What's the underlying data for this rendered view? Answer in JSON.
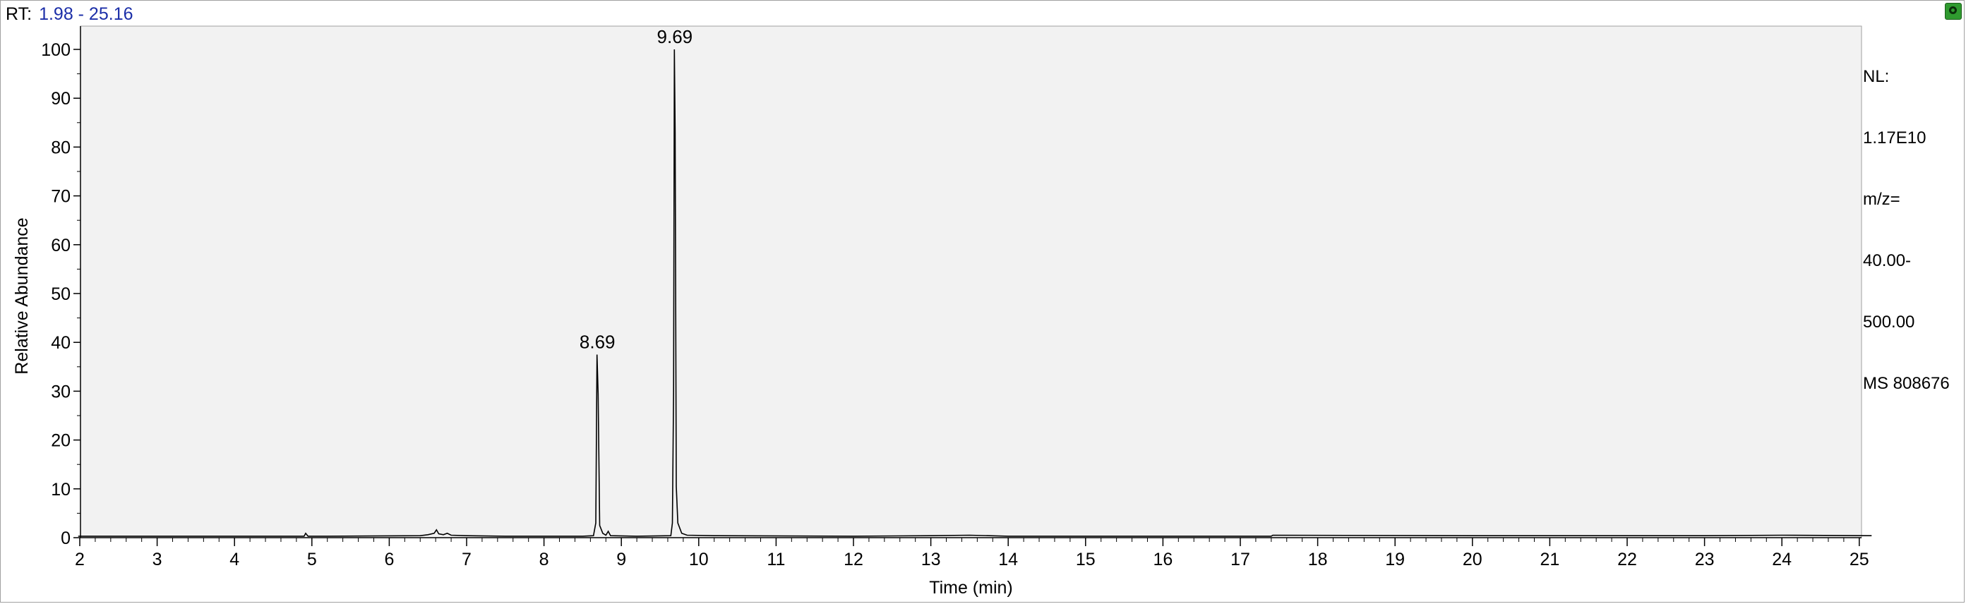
{
  "header": {
    "rt_label": "RT:",
    "rt_range": "1.98 - 25.16"
  },
  "info_panel": {
    "lines": [
      "NL:",
      "1.17E10",
      "m/z=",
      "40.00-",
      "500.00",
      "MS 808676"
    ]
  },
  "colors": {
    "plot_background": "#f2f2f2",
    "trace": "#000000",
    "rt_value": "#1c2fa8",
    "corner_button": "#2f9a2f"
  },
  "icons": {
    "corner_button": "refresh-icon"
  },
  "chart_data": {
    "type": "line",
    "xlabel": "Time (min)",
    "ylabel": "Relative Abundance",
    "xlim": [
      1.98,
      25.16
    ],
    "ylim": [
      0,
      100
    ],
    "x_ticks": [
      2,
      3,
      4,
      5,
      6,
      7,
      8,
      9,
      10,
      11,
      12,
      13,
      14,
      15,
      16,
      17,
      18,
      19,
      20,
      21,
      22,
      23,
      24,
      25
    ],
    "y_ticks": [
      0,
      10,
      20,
      30,
      40,
      50,
      60,
      70,
      80,
      90,
      100
    ],
    "grid": false,
    "peak_labels": [
      {
        "text": "8.69",
        "x": 8.69,
        "y": 37.5
      },
      {
        "text": "9.69",
        "x": 9.69,
        "y": 100
      }
    ],
    "series": [
      {
        "points": [
          [
            1.98,
            0.3
          ],
          [
            4.9,
            0.3
          ],
          [
            4.92,
            0.9
          ],
          [
            4.95,
            0.3
          ],
          [
            5.2,
            0.3
          ],
          [
            6.4,
            0.4
          ],
          [
            6.5,
            0.6
          ],
          [
            6.58,
            0.9
          ],
          [
            6.61,
            1.6
          ],
          [
            6.64,
            0.8
          ],
          [
            6.7,
            0.6
          ],
          [
            6.75,
            0.9
          ],
          [
            6.8,
            0.5
          ],
          [
            7.0,
            0.4
          ],
          [
            7.5,
            0.3
          ],
          [
            8.5,
            0.3
          ],
          [
            8.64,
            0.4
          ],
          [
            8.67,
            3.0
          ],
          [
            8.685,
            37.5
          ],
          [
            8.7,
            29.5
          ],
          [
            8.72,
            2.5
          ],
          [
            8.76,
            0.9
          ],
          [
            8.8,
            0.5
          ],
          [
            8.83,
            1.3
          ],
          [
            8.86,
            0.4
          ],
          [
            9.2,
            0.3
          ],
          [
            9.64,
            0.4
          ],
          [
            9.66,
            3.0
          ],
          [
            9.675,
            30.0
          ],
          [
            9.685,
            100
          ],
          [
            9.695,
            83.0
          ],
          [
            9.71,
            10.5
          ],
          [
            9.73,
            3.0
          ],
          [
            9.78,
            0.9
          ],
          [
            9.85,
            0.5
          ],
          [
            10.2,
            0.4
          ],
          [
            12.0,
            0.3
          ],
          [
            13.0,
            0.4
          ],
          [
            13.5,
            0.5
          ],
          [
            14.0,
            0.3
          ],
          [
            17.4,
            0.3
          ],
          [
            17.42,
            0.5
          ],
          [
            20.0,
            0.4
          ],
          [
            23.0,
            0.4
          ],
          [
            24.0,
            0.5
          ],
          [
            25.16,
            0.4
          ]
        ]
      }
    ]
  }
}
